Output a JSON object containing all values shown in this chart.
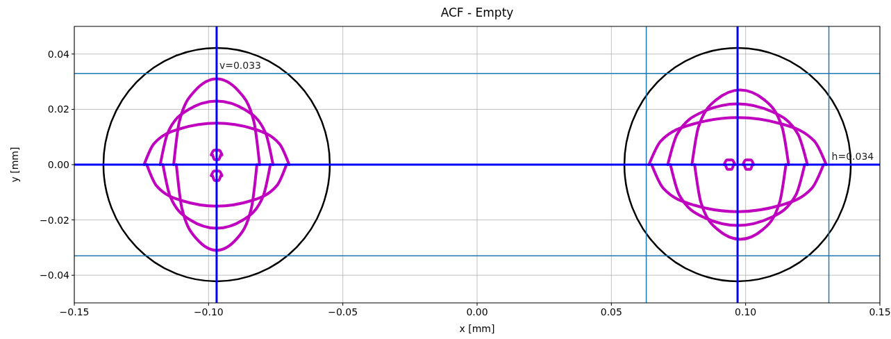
{
  "chart_data": {
    "type": "line",
    "title": "ACF - Empty",
    "xlabel": "x [mm]",
    "ylabel": "y [mm]",
    "xlim": [
      -0.15,
      0.15
    ],
    "ylim": [
      -0.05,
      0.05
    ],
    "xticks": [
      {
        "value": -0.15,
        "label": "−0.15"
      },
      {
        "value": -0.1,
        "label": "−0.10"
      },
      {
        "value": -0.05,
        "label": "−0.05"
      },
      {
        "value": 0,
        "label": "0.00"
      },
      {
        "value": 0.05,
        "label": "0.05"
      },
      {
        "value": 0.1,
        "label": "0.10"
      },
      {
        "value": 0.15,
        "label": "0.15"
      }
    ],
    "yticks": [
      {
        "value": -0.04,
        "label": "−0.04"
      },
      {
        "value": -0.02,
        "label": "−0.02"
      },
      {
        "value": 0,
        "label": "0.00"
      },
      {
        "value": 0.02,
        "label": "0.02"
      },
      {
        "value": 0.04,
        "label": "0.04"
      }
    ],
    "grid": true,
    "line_style": "solid",
    "marker": "none",
    "series": [
      {
        "color": "#bf00bf",
        "x": [
          -0.124,
          -0.1204,
          -0.1105,
          -0.097,
          -0.0835,
          -0.0736,
          -0.07
        ],
        "values": [
          0,
          0.0075,
          0.013,
          0.015,
          0.013,
          0.0075,
          0
        ]
      },
      {
        "color": "#bf00bf",
        "x": [
          -0.123,
          -0.1195,
          -0.11,
          -0.097,
          -0.084,
          -0.0745,
          -0.071
        ],
        "values": [
          0,
          -0.0075,
          -0.013,
          -0.015,
          -0.013,
          -0.0075,
          0
        ]
      },
      {
        "color": "#bf00bf",
        "x": [
          -0.113,
          -0.1109,
          -0.105,
          -0.097,
          -0.089,
          -0.0831,
          -0.081
        ],
        "values": [
          0,
          0.0155,
          0.0268,
          0.031,
          0.0268,
          0.0155,
          0
        ]
      },
      {
        "color": "#bf00bf",
        "x": [
          -0.112,
          -0.11,
          -0.1045,
          -0.097,
          -0.0895,
          -0.084,
          -0.082
        ],
        "values": [
          0,
          -0.0155,
          -0.0268,
          -0.031,
          -0.0268,
          -0.0155,
          0
        ]
      },
      {
        "color": "#bf00bf",
        "x": [
          -0.118,
          -0.1152,
          -0.1075,
          -0.097,
          -0.0865,
          -0.0788,
          -0.076
        ],
        "values": [
          0,
          0.0115,
          0.0199,
          0.023,
          0.0199,
          0.0115,
          0
        ]
      },
      {
        "color": "#bf00bf",
        "x": [
          -0.117,
          -0.1143,
          -0.107,
          -0.097,
          -0.087,
          -0.0797,
          -0.077
        ],
        "values": [
          0,
          -0.0115,
          -0.0199,
          -0.023,
          -0.0199,
          -0.0115,
          0
        ]
      },
      {
        "color": "#bf00bf",
        "x": [
          -0.099,
          -0.098,
          -0.096,
          -0.095
        ],
        "values": [
          0.0035,
          0.0052,
          0.0052,
          0.0035
        ]
      },
      {
        "color": "#bf00bf",
        "x": [
          -0.0985,
          -0.0978,
          -0.0962,
          -0.0955
        ],
        "values": [
          0.0035,
          0.0018,
          0.0018,
          0.0035
        ]
      },
      {
        "color": "#bf00bf",
        "x": [
          -0.099,
          -0.098,
          -0.096,
          -0.095
        ],
        "values": [
          -0.004,
          -0.0023,
          -0.0023,
          -0.004
        ]
      },
      {
        "color": "#bf00bf",
        "x": [
          -0.0985,
          -0.0978,
          -0.0962,
          -0.0955
        ],
        "values": [
          -0.004,
          -0.0057,
          -0.0057,
          -0.004
        ]
      },
      {
        "color": "#bf00bf",
        "x": [
          0.064,
          0.0684,
          0.0805,
          0.097,
          0.1135,
          0.1256,
          0.13
        ],
        "values": [
          0,
          0.0085,
          0.0147,
          0.017,
          0.0147,
          0.0085,
          0
        ]
      },
      {
        "color": "#bf00bf",
        "x": [
          0.065,
          0.0693,
          0.081,
          0.097,
          0.113,
          0.1247,
          0.129
        ],
        "values": [
          0,
          -0.0085,
          -0.0147,
          -0.017,
          -0.0147,
          -0.0085,
          0
        ]
      },
      {
        "color": "#bf00bf",
        "x": [
          0.08,
          0.0824,
          0.089,
          0.098,
          0.107,
          0.1136,
          0.116
        ],
        "values": [
          0,
          0.0135,
          0.0234,
          0.027,
          0.0234,
          0.0135,
          0
        ]
      },
      {
        "color": "#bf00bf",
        "x": [
          0.081,
          0.0833,
          0.0895,
          0.098,
          0.1065,
          0.1127,
          0.115
        ],
        "values": [
          0,
          -0.0135,
          -0.0234,
          -0.027,
          -0.0234,
          -0.0135,
          0
        ]
      },
      {
        "color": "#bf00bf",
        "x": [
          0.071,
          0.0745,
          0.084,
          0.097,
          0.11,
          0.1195,
          0.123
        ],
        "values": [
          0,
          0.011,
          0.0191,
          0.022,
          0.0191,
          0.011,
          0
        ]
      },
      {
        "color": "#bf00bf",
        "x": [
          0.072,
          0.0753,
          0.0845,
          0.097,
          0.1095,
          0.1187,
          0.122
        ],
        "values": [
          0,
          -0.011,
          -0.0191,
          -0.022,
          -0.0191,
          -0.011,
          0
        ]
      },
      {
        "color": "#bf00bf",
        "x": [
          0.092,
          0.093,
          0.095,
          0.096
        ],
        "values": [
          0,
          0.0017,
          0.0017,
          0
        ]
      },
      {
        "color": "#bf00bf",
        "x": [
          0.0925,
          0.0932,
          0.0948,
          0.0955
        ],
        "values": [
          0,
          -0.0017,
          -0.0017,
          0
        ]
      },
      {
        "color": "#bf00bf",
        "x": [
          0.099,
          0.1,
          0.102,
          0.103
        ],
        "values": [
          0,
          0.0017,
          0.0017,
          0
        ]
      },
      {
        "color": "#bf00bf",
        "x": [
          0.0995,
          0.1002,
          0.1018,
          0.1025
        ],
        "values": [
          0,
          -0.0017,
          -0.0017,
          0
        ]
      }
    ],
    "ref_lines": [
      {
        "axis": "y",
        "value": 0.033,
        "color": "#1f77b4"
      },
      {
        "axis": "y",
        "value": -0.033,
        "color": "#1f77b4"
      },
      {
        "axis": "x",
        "value": 0.063,
        "color": "#1f77b4"
      },
      {
        "axis": "x",
        "value": 0.131,
        "color": "#1f77b4"
      },
      {
        "axis": "x",
        "value": -0.097,
        "color": "#0000ff"
      },
      {
        "axis": "x",
        "value": 0.097,
        "color": "#0000ff"
      },
      {
        "axis": "y",
        "value": 0,
        "color": "#0000ff"
      }
    ],
    "annotations": [
      {
        "text": "v=0.033",
        "x": -0.097,
        "y": 0.033
      },
      {
        "text": "h=0.034",
        "x": 0.131,
        "y": 0
      }
    ]
  }
}
